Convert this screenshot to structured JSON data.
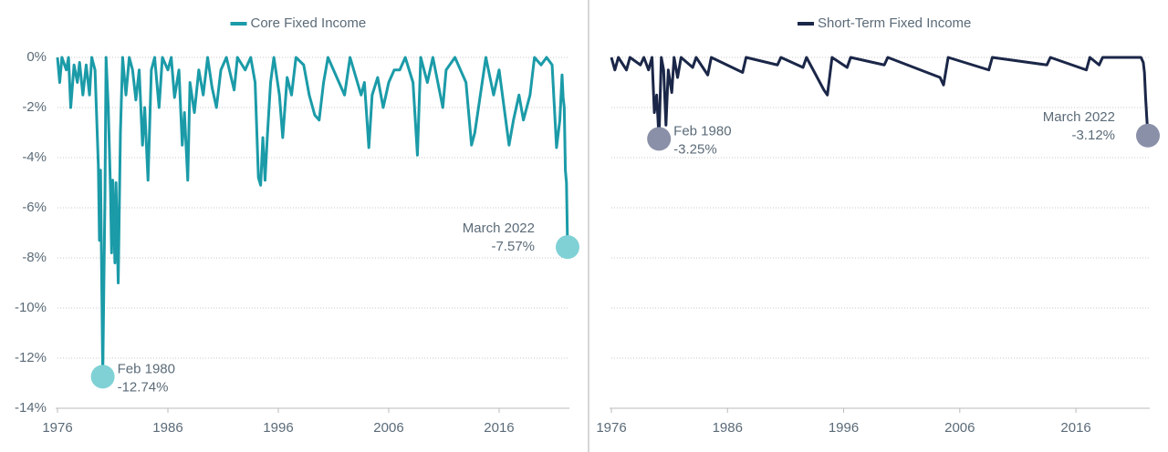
{
  "chart_data": [
    {
      "type": "line",
      "x": [
        1976.0,
        1976.2,
        1976.4,
        1976.8,
        1977.0,
        1977.2,
        1977.5,
        1977.8,
        1978.0,
        1978.3,
        1978.6,
        1978.9,
        1979.1,
        1979.4,
        1979.7,
        1979.8,
        1979.9,
        1980.1,
        1980.3,
        1980.4,
        1980.6,
        1980.8,
        1980.9,
        1981.0,
        1981.2,
        1981.3,
        1981.5,
        1981.7,
        1981.9,
        1982.2,
        1982.5,
        1982.8,
        1983.1,
        1983.4,
        1983.7,
        1983.9,
        1984.2,
        1984.5,
        1984.8,
        1985.2,
        1985.5,
        1986.0,
        1986.3,
        1986.6,
        1987.0,
        1987.3,
        1987.5,
        1987.8,
        1988.0,
        1988.4,
        1988.8,
        1989.2,
        1989.6,
        1990.0,
        1990.4,
        1990.8,
        1991.3,
        1992.0,
        1992.3,
        1993.0,
        1993.5,
        1993.9,
        1994.2,
        1994.4,
        1994.6,
        1994.8,
        1995.0,
        1995.3,
        1995.6,
        1996.1,
        1996.4,
        1996.8,
        1997.2,
        1997.6,
        1998.3,
        1998.8,
        1999.3,
        1999.7,
        2000.1,
        2000.5,
        2001.5,
        2002.0,
        2002.5,
        2003.5,
        2003.8,
        2004.2,
        2004.5,
        2005.0,
        2005.5,
        2006.0,
        2006.5,
        2007.0,
        2007.5,
        2008.2,
        2008.6,
        2008.9,
        2009.5,
        2010.0,
        2010.9,
        2011.2,
        2012.0,
        2013.0,
        2013.5,
        2013.8,
        2014.3,
        2014.8,
        2015.5,
        2016.0,
        2016.9,
        2017.3,
        2017.8,
        2018.2,
        2018.8,
        2019.2,
        2019.8,
        2020.3,
        2020.8,
        2021.2,
        2021.5,
        2021.7,
        2021.8,
        2021.9,
        2022.0,
        2022.1,
        2022.2
      ],
      "series": [
        {
          "name": "Core Fixed Income",
          "color": "#1b9ba8",
          "values": [
            0,
            -1.0,
            0,
            -0.5,
            0,
            -2.0,
            -0.3,
            -1.0,
            -0.2,
            -1.5,
            -0.3,
            -1.5,
            0,
            -0.5,
            -4.3,
            -7.3,
            -4.5,
            -12.74,
            -5.5,
            0,
            -2,
            -5.3,
            -7.8,
            -4.9,
            -8.2,
            -5,
            -9.0,
            -3,
            0,
            -1.5,
            0,
            -0.5,
            -1.7,
            -0.5,
            -3.5,
            -2,
            -4.9,
            -0.5,
            0,
            -2,
            0,
            -0.5,
            0,
            -1.6,
            -0.5,
            -3.5,
            -2.2,
            -4.9,
            -1,
            -2.2,
            -0.5,
            -1.5,
            0,
            -1.2,
            -2,
            -0.5,
            0,
            -1.3,
            0,
            -0.5,
            0,
            -1,
            -4.8,
            -5.1,
            -3.2,
            -4.9,
            -3.2,
            -1,
            0,
            -1.5,
            -3.2,
            -0.8,
            -1.5,
            0,
            -0.3,
            -1.5,
            -2.3,
            -2.5,
            -1.0,
            0,
            -1.0,
            -1.5,
            0,
            -1.5,
            -1.0,
            -3.6,
            -1.5,
            -0.8,
            -2.0,
            -1.0,
            -0.5,
            -0.5,
            0,
            -1,
            -3.9,
            0,
            -1,
            0,
            -2.0,
            -0.5,
            0,
            -1,
            -3.5,
            -3.0,
            -1.5,
            0,
            -1.5,
            -0.5,
            -3.5,
            -2.5,
            -1.5,
            -2.5,
            -1.5,
            0,
            -0.3,
            0,
            -0.3,
            -3.6,
            -2.5,
            -0.7,
            -1.6,
            -2.0,
            -4.5,
            -5.0,
            -7.57
          ]
        }
      ],
      "marker_color": "#7fd1d5",
      "annotations": [
        {
          "x": 1980.1,
          "y": -12.74,
          "label": "Feb 1980",
          "value_label": "-12.74%"
        },
        {
          "x": 2022.2,
          "y": -7.57,
          "label": "March 2022",
          "value_label": "-7.57%"
        }
      ],
      "xlim": [
        1976,
        2022.2
      ],
      "xticks": [
        1976,
        1986,
        1996,
        2006,
        2016
      ],
      "ylim": [
        -14,
        0
      ],
      "ytick_labels": true,
      "yticks": [
        {
          "value": 0,
          "label": "0%"
        },
        {
          "value": -2,
          "label": "-2%"
        },
        {
          "value": -4,
          "label": "-4%"
        },
        {
          "value": -6,
          "label": "-6%"
        },
        {
          "value": -8,
          "label": "-8%"
        },
        {
          "value": -10,
          "label": "-10%"
        },
        {
          "value": -12,
          "label": "-12%"
        },
        {
          "value": -14,
          "label": "-14%"
        }
      ],
      "grid": true
    },
    {
      "type": "line",
      "x": [
        1976.0,
        1976.3,
        1976.6,
        1977.3,
        1977.6,
        1978.5,
        1978.8,
        1979.2,
        1979.5,
        1979.7,
        1979.9,
        1980.1,
        1980.3,
        1980.5,
        1980.7,
        1980.9,
        1981.2,
        1981.4,
        1981.7,
        1982.0,
        1983.0,
        1983.3,
        1984.3,
        1984.6,
        1987.3,
        1987.6,
        1990.3,
        1990.6,
        1992.5,
        1992.8,
        1994.3,
        1994.6,
        1995.0,
        1996.3,
        1996.6,
        1999.5,
        1999.8,
        2004.3,
        2004.6,
        2005.0,
        2008.5,
        2008.8,
        2013.5,
        2013.8,
        2016.9,
        2017.2,
        2018.0,
        2018.3,
        2021.6,
        2021.8,
        2021.9,
        2022.0,
        2022.1,
        2022.2
      ],
      "series": [
        {
          "name": "Short-Term Fixed Income",
          "color": "#1b2748",
          "values": [
            0,
            -0.5,
            0,
            -0.5,
            0,
            -0.3,
            0,
            -0.5,
            0,
            -2.2,
            -1.5,
            -3.25,
            0,
            -0.5,
            -2.7,
            -0.5,
            -1.4,
            0,
            -0.8,
            0,
            -0.4,
            0,
            -0.7,
            0,
            -0.6,
            0,
            -0.3,
            0,
            -0.4,
            0,
            -1.3,
            -1.5,
            0,
            -0.4,
            0,
            -0.3,
            0,
            -0.8,
            -1.1,
            0,
            -0.5,
            0,
            -0.3,
            0,
            -0.5,
            0,
            -0.3,
            0,
            0,
            -0.2,
            -0.6,
            -1.6,
            -2.4,
            -3.12
          ]
        }
      ],
      "marker_color": "#8a90a7",
      "annotations": [
        {
          "x": 1980.1,
          "y": -3.25,
          "label": "Feb 1980",
          "value_label": "-3.25%"
        },
        {
          "x": 2022.2,
          "y": -3.12,
          "label": "March 2022",
          "value_label": "-3.12%"
        }
      ],
      "xlim": [
        1976,
        2022.2
      ],
      "xticks": [
        1976,
        1986,
        1996,
        2006,
        2016
      ],
      "ylim": [
        -14,
        0
      ],
      "ytick_labels": false,
      "yticks": [
        0,
        -2,
        -4,
        -6,
        -8,
        -10,
        -12,
        -14
      ],
      "grid": true
    }
  ]
}
